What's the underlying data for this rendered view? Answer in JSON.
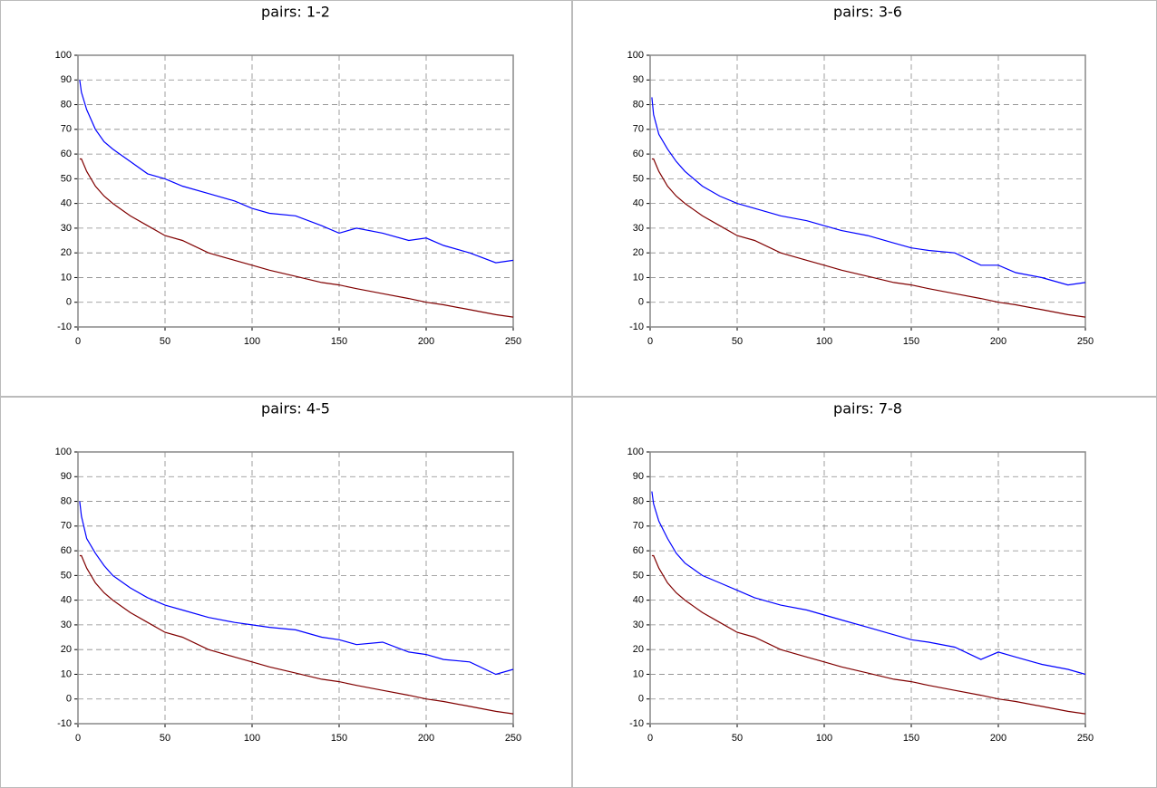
{
  "chart_data": [
    {
      "type": "line",
      "title": "pairs: 1-2",
      "x": [
        1,
        2,
        5,
        10,
        15,
        20,
        30,
        40,
        50,
        60,
        75,
        90,
        100,
        110,
        125,
        140,
        150,
        160,
        175,
        190,
        200,
        210,
        225,
        240,
        250
      ],
      "series": [
        {
          "color": "#0000ff",
          "values": [
            90,
            85,
            78,
            70,
            65,
            62,
            57,
            52,
            50,
            47,
            44,
            41,
            38,
            36,
            35,
            31,
            28,
            30,
            28,
            25,
            26,
            23,
            20,
            16,
            17
          ]
        },
        {
          "color": "#800000",
          "values": [
            58,
            58,
            53,
            47,
            43,
            40,
            35,
            31,
            27,
            25,
            20,
            17,
            15,
            13,
            10.5,
            8,
            7,
            5.5,
            3.5,
            1.5,
            0,
            -1,
            -3,
            -5,
            -6
          ]
        }
      ],
      "xlim": [
        0,
        250
      ],
      "xticks": [
        0,
        50,
        100,
        150,
        200,
        250
      ],
      "ylim": [
        -10,
        100
      ],
      "yticks": [
        -10,
        0,
        10,
        20,
        30,
        40,
        50,
        60,
        70,
        80,
        90,
        100
      ],
      "grid": true
    },
    {
      "type": "line",
      "title": "pairs: 3-6",
      "x": [
        1,
        2,
        5,
        10,
        15,
        20,
        30,
        40,
        50,
        60,
        75,
        90,
        100,
        110,
        125,
        140,
        150,
        160,
        175,
        190,
        200,
        210,
        225,
        240,
        250
      ],
      "series": [
        {
          "color": "#0000ff",
          "values": [
            83,
            76,
            68,
            62,
            57,
            53,
            47,
            43,
            40,
            38,
            35,
            33,
            31,
            29,
            27,
            24,
            22,
            21,
            20,
            15,
            15,
            12,
            10,
            7,
            8
          ]
        },
        {
          "color": "#800000",
          "values": [
            58,
            58,
            53,
            47,
            43,
            40,
            35,
            31,
            27,
            25,
            20,
            17,
            15,
            13,
            10.5,
            8,
            7,
            5.5,
            3.5,
            1.5,
            0,
            -1,
            -3,
            -5,
            -6
          ]
        }
      ],
      "xlim": [
        0,
        250
      ],
      "xticks": [
        0,
        50,
        100,
        150,
        200,
        250
      ],
      "ylim": [
        -10,
        100
      ],
      "yticks": [
        -10,
        0,
        10,
        20,
        30,
        40,
        50,
        60,
        70,
        80,
        90,
        100
      ],
      "grid": true
    },
    {
      "type": "line",
      "title": "pairs: 4-5",
      "x": [
        1,
        2,
        5,
        10,
        15,
        20,
        30,
        40,
        50,
        60,
        75,
        90,
        100,
        110,
        125,
        140,
        150,
        160,
        175,
        190,
        200,
        210,
        225,
        240,
        250
      ],
      "series": [
        {
          "color": "#0000ff",
          "values": [
            80,
            74,
            65,
            59,
            54,
            50,
            45,
            41,
            38,
            36,
            33,
            31,
            30,
            29,
            28,
            25,
            24,
            22,
            23,
            19,
            18,
            16,
            15,
            10,
            12
          ]
        },
        {
          "color": "#800000",
          "values": [
            58,
            58,
            53,
            47,
            43,
            40,
            35,
            31,
            27,
            25,
            20,
            17,
            15,
            13,
            10.5,
            8,
            7,
            5.5,
            3.5,
            1.5,
            0,
            -1,
            -3,
            -5,
            -6
          ]
        }
      ],
      "xlim": [
        0,
        250
      ],
      "xticks": [
        0,
        50,
        100,
        150,
        200,
        250
      ],
      "ylim": [
        -10,
        100
      ],
      "yticks": [
        -10,
        0,
        10,
        20,
        30,
        40,
        50,
        60,
        70,
        80,
        90,
        100
      ],
      "grid": true
    },
    {
      "type": "line",
      "title": "pairs: 7-8",
      "x": [
        1,
        2,
        5,
        10,
        15,
        20,
        30,
        40,
        50,
        60,
        75,
        90,
        100,
        110,
        125,
        140,
        150,
        160,
        175,
        190,
        200,
        210,
        225,
        240,
        250
      ],
      "series": [
        {
          "color": "#0000ff",
          "values": [
            84,
            79,
            72,
            65,
            59,
            55,
            50,
            47,
            44,
            41,
            38,
            36,
            34,
            32,
            29,
            26,
            24,
            23,
            21,
            16,
            19,
            17,
            14,
            12,
            10
          ]
        },
        {
          "color": "#800000",
          "values": [
            58,
            58,
            53,
            47,
            43,
            40,
            35,
            31,
            27,
            25,
            20,
            17,
            15,
            13,
            10.5,
            8,
            7,
            5.5,
            3.5,
            1.5,
            0,
            -1,
            -3,
            -5,
            -6
          ]
        }
      ],
      "xlim": [
        0,
        250
      ],
      "xticks": [
        0,
        50,
        100,
        150,
        200,
        250
      ],
      "ylim": [
        -10,
        100
      ],
      "yticks": [
        -10,
        0,
        10,
        20,
        30,
        40,
        50,
        60,
        70,
        80,
        90,
        100
      ],
      "grid": true
    }
  ]
}
